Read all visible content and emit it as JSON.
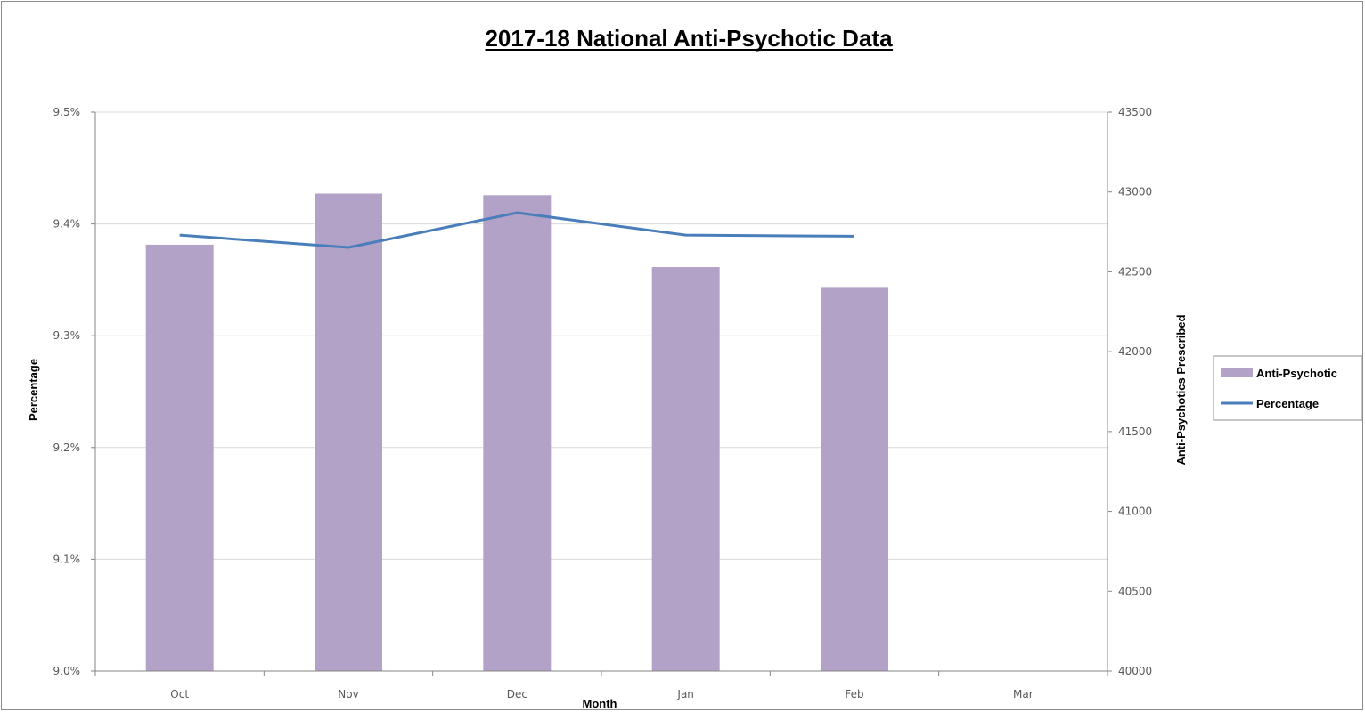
{
  "chart_data": {
    "type": "bar",
    "title": "2017-18 National Anti-Psychotic Data",
    "xlabel": "Month",
    "ylabel_left": "Percentage",
    "ylabel_right": "Anti-Psychotics Prescribed",
    "categories": [
      "Oct",
      "Nov",
      "Dec",
      "Jan",
      "Feb",
      "Mar"
    ],
    "left_axis": {
      "min": 9.0,
      "max": 9.5,
      "step": 0.1,
      "tick_labels": [
        "9.0%",
        "9.1%",
        "9.2%",
        "9.3%",
        "9.4%",
        "9.5%"
      ]
    },
    "right_axis": {
      "min": 40000,
      "max": 43500,
      "step": 500,
      "tick_labels": [
        "40000",
        "40500",
        "41000",
        "41500",
        "42000",
        "42500",
        "43000",
        "43500"
      ]
    },
    "gridlines": true,
    "legend_position": "right",
    "series": [
      {
        "name": "Anti-Psychotic",
        "type": "bar",
        "axis": "right",
        "color": "#B3A2C7",
        "values": [
          42670,
          42990,
          42980,
          42530,
          42400,
          null
        ]
      },
      {
        "name": "Percentage",
        "type": "line",
        "axis": "left",
        "color": "#4A7EBB",
        "values": [
          9.39,
          9.379,
          9.41,
          9.39,
          9.389,
          null
        ]
      }
    ]
  }
}
